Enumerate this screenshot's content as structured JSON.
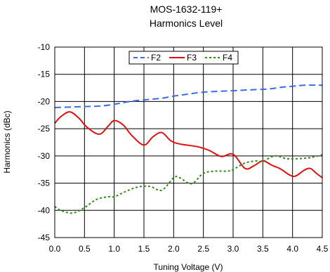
{
  "chart_data": {
    "type": "line",
    "title": "MOS-1632-119+",
    "subtitle": "Harmonics Level",
    "xlabel": "Tuning Voltage (V)",
    "ylabel": "Harmonics (dBc)",
    "xlim": [
      0.0,
      4.5
    ],
    "ylim": [
      -45,
      -10
    ],
    "x_ticks": [
      "0.0",
      "0.5",
      "1.0",
      "1.5",
      "2.0",
      "2.5",
      "3.0",
      "3.5",
      "4.0",
      "4.5"
    ],
    "y_ticks": [
      "-10",
      "-15",
      "-20",
      "-25",
      "-30",
      "-35",
      "-40",
      "-45"
    ],
    "grid": true,
    "legend_position": "top-center",
    "series": [
      {
        "name": "F2",
        "color": "#3a6ee8",
        "dash": "dashed",
        "points": [
          [
            0.0,
            -21.1
          ],
          [
            0.3,
            -21.0
          ],
          [
            0.6,
            -20.9
          ],
          [
            0.8,
            -20.8
          ],
          [
            1.0,
            -20.5
          ],
          [
            1.2,
            -20.1
          ],
          [
            1.4,
            -19.8
          ],
          [
            1.6,
            -19.6
          ],
          [
            1.8,
            -19.4
          ],
          [
            2.0,
            -19.0
          ],
          [
            2.2,
            -18.7
          ],
          [
            2.4,
            -18.4
          ],
          [
            2.6,
            -18.2
          ],
          [
            2.8,
            -18.1
          ],
          [
            3.0,
            -18.0
          ],
          [
            3.2,
            -17.9
          ],
          [
            3.4,
            -17.8
          ],
          [
            3.6,
            -17.7
          ],
          [
            3.8,
            -17.4
          ],
          [
            4.0,
            -17.2
          ],
          [
            4.2,
            -17.0
          ],
          [
            4.5,
            -17.0
          ]
        ]
      },
      {
        "name": "F3",
        "color": "#e01010",
        "dash": "solid",
        "points": [
          [
            0.0,
            -24.0
          ],
          [
            0.1,
            -22.8
          ],
          [
            0.25,
            -21.9
          ],
          [
            0.4,
            -23.0
          ],
          [
            0.55,
            -24.8
          ],
          [
            0.75,
            -26.0
          ],
          [
            0.9,
            -24.5
          ],
          [
            1.0,
            -23.5
          ],
          [
            1.15,
            -24.3
          ],
          [
            1.3,
            -26.3
          ],
          [
            1.5,
            -28.0
          ],
          [
            1.65,
            -26.5
          ],
          [
            1.8,
            -25.7
          ],
          [
            1.95,
            -27.2
          ],
          [
            2.1,
            -27.8
          ],
          [
            2.4,
            -28.3
          ],
          [
            2.6,
            -29.0
          ],
          [
            2.8,
            -30.1
          ],
          [
            3.0,
            -29.7
          ],
          [
            3.2,
            -32.3
          ],
          [
            3.35,
            -31.8
          ],
          [
            3.5,
            -30.9
          ],
          [
            3.65,
            -31.7
          ],
          [
            3.8,
            -32.4
          ],
          [
            3.95,
            -33.5
          ],
          [
            4.05,
            -33.7
          ],
          [
            4.2,
            -32.6
          ],
          [
            4.3,
            -32.3
          ],
          [
            4.4,
            -33.2
          ],
          [
            4.5,
            -34.0
          ]
        ]
      },
      {
        "name": "F4",
        "color": "#2e8b1c",
        "dash": "dotted",
        "points": [
          [
            0.0,
            -39.3
          ],
          [
            0.1,
            -40.0
          ],
          [
            0.3,
            -40.5
          ],
          [
            0.5,
            -39.5
          ],
          [
            0.7,
            -38.0
          ],
          [
            0.9,
            -37.5
          ],
          [
            1.0,
            -37.5
          ],
          [
            1.2,
            -36.5
          ],
          [
            1.4,
            -35.7
          ],
          [
            1.6,
            -35.6
          ],
          [
            1.8,
            -36.3
          ],
          [
            2.0,
            -34.0
          ],
          [
            2.1,
            -34.0
          ],
          [
            2.3,
            -35.1
          ],
          [
            2.5,
            -33.2
          ],
          [
            2.7,
            -32.8
          ],
          [
            2.9,
            -32.8
          ],
          [
            3.0,
            -32.5
          ],
          [
            3.2,
            -31.3
          ],
          [
            3.4,
            -30.9
          ],
          [
            3.5,
            -31.0
          ],
          [
            3.7,
            -30.0
          ],
          [
            3.9,
            -30.5
          ],
          [
            4.1,
            -30.5
          ],
          [
            4.3,
            -30.3
          ],
          [
            4.5,
            -29.8
          ]
        ]
      }
    ]
  }
}
